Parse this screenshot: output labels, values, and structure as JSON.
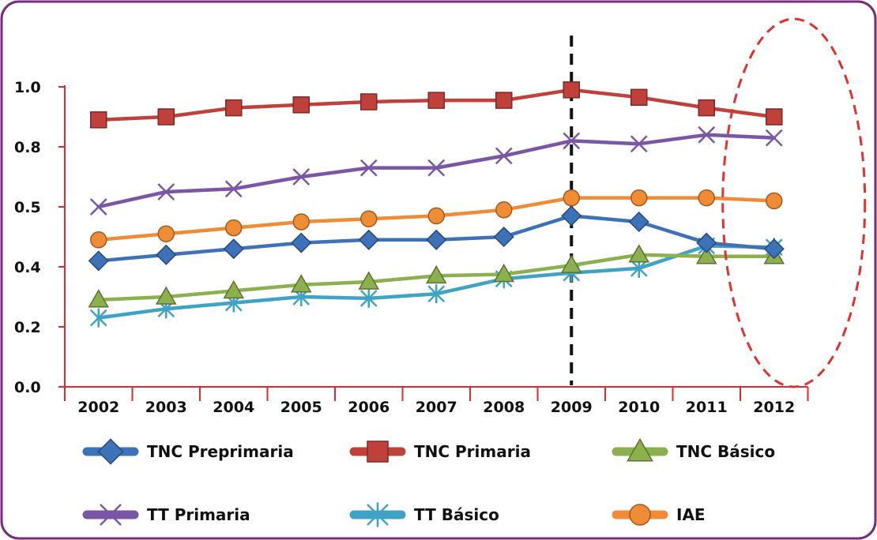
{
  "chart_data": {
    "type": "line",
    "categories": [
      "2002",
      "2003",
      "2004",
      "2005",
      "2006",
      "2007",
      "2008",
      "2009",
      "2010",
      "2011",
      "2012"
    ],
    "y_tick_labels": [
      "0.0",
      "0.2",
      "0.4",
      "0.5",
      "0.8",
      "1.0"
    ],
    "ylim": [
      0,
      1.0
    ],
    "grid": false,
    "legend_position": "bottom",
    "series": [
      {
        "name": "TNC Preprimaria",
        "color": "#3d72b8",
        "marker": "diamond",
        "values": [
          0.42,
          0.44,
          0.46,
          0.48,
          0.49,
          0.49,
          0.5,
          0.57,
          0.55,
          0.48,
          0.46
        ]
      },
      {
        "name": "TNC Primaria",
        "color": "#c0403a",
        "marker": "square",
        "values": [
          0.89,
          0.9,
          0.93,
          0.94,
          0.95,
          0.955,
          0.955,
          0.99,
          0.965,
          0.93,
          0.9
        ]
      },
      {
        "name": "TNC Básico",
        "color": "#8cb04d",
        "marker": "triangle",
        "values": [
          0.29,
          0.3,
          0.32,
          0.34,
          0.35,
          0.37,
          0.375,
          0.405,
          0.44,
          0.435,
          0.435
        ]
      },
      {
        "name": "TT Primaria",
        "color": "#7b55a6",
        "marker": "x",
        "values": [
          0.6,
          0.65,
          0.66,
          0.7,
          0.73,
          0.73,
          0.77,
          0.82,
          0.81,
          0.84,
          0.83
        ]
      },
      {
        "name": "TT Básico",
        "color": "#3fa3c6",
        "marker": "star",
        "values": [
          0.23,
          0.26,
          0.28,
          0.3,
          0.295,
          0.31,
          0.36,
          0.38,
          0.395,
          0.47,
          0.465
        ]
      },
      {
        "name": "IAE",
        "color": "#f08c35",
        "marker": "circle",
        "values": [
          0.49,
          0.51,
          0.53,
          0.55,
          0.56,
          0.57,
          0.59,
          0.63,
          0.63,
          0.63,
          0.62
        ]
      }
    ],
    "annotations": [
      {
        "kind": "vertical-dashed-line",
        "at": "2009",
        "color": "#111111"
      },
      {
        "kind": "dashed-ellipse",
        "around": "2012",
        "color": "#e0322f"
      }
    ]
  },
  "colors": {
    "frame": "#7a2a7a",
    "axis": "#e02b2b"
  }
}
